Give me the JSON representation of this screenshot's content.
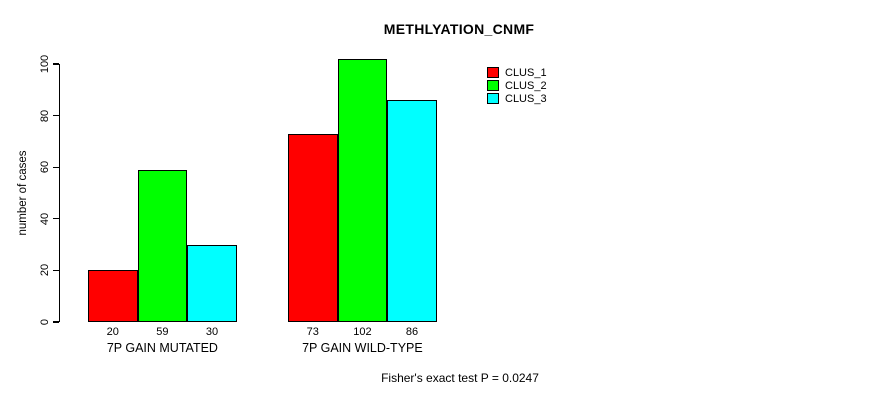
{
  "title": "METHLYATION_CNMF",
  "footer": "Fisher's exact test P = 0.0247",
  "y_axis": {
    "label": "number of cases"
  },
  "legend": {
    "items": [
      {
        "label": "CLUS_1",
        "color": "#FF0000"
      },
      {
        "label": "CLUS_2",
        "color": "#00FF00"
      },
      {
        "label": "CLUS_3",
        "color": "#00FFFF"
      }
    ]
  },
  "chart_data": {
    "type": "bar",
    "title": "METHLYATION_CNMF",
    "categories": [
      "7P GAIN MUTATED",
      "7P GAIN WILD-TYPE"
    ],
    "series": [
      {
        "name": "CLUS_1",
        "color": "#FF0000",
        "values": [
          20,
          73
        ]
      },
      {
        "name": "CLUS_2",
        "color": "#00FF00",
        "values": [
          59,
          102
        ]
      },
      {
        "name": "CLUS_3",
        "color": "#00FFFF",
        "values": [
          30,
          86
        ]
      }
    ],
    "ylabel": "number of cases",
    "xlabel": "",
    "yticks": [
      0,
      20,
      40,
      60,
      80,
      100
    ],
    "ylim": [
      0,
      102
    ],
    "grid": false,
    "bar_outline_color": "#000000",
    "bar_value_labels_shown": true,
    "legend_position": "top-right",
    "annotation": "Fisher's exact test P = 0.0247"
  }
}
